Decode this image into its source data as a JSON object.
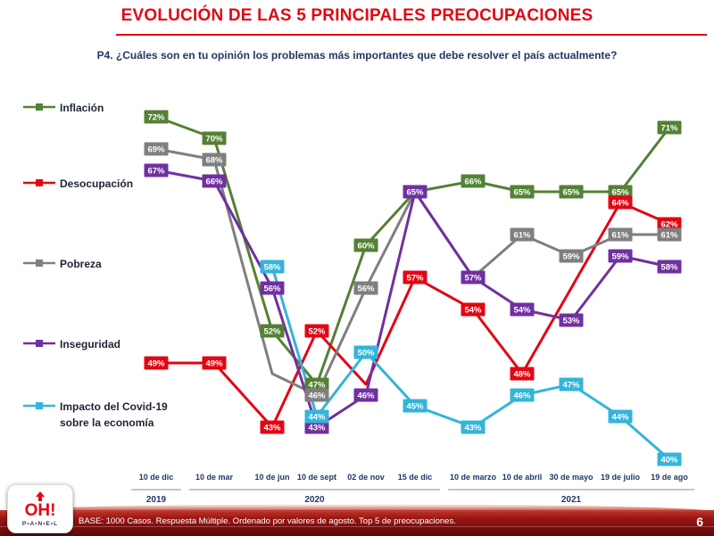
{
  "slide": {
    "title": "EVOLUCIÓN DE LAS 5 PRINCIPALES PREOCUPACIONES",
    "subtitle": "P4. ¿Cuáles son en tu opinión los problemas más importantes que debe resolver el país actualmente?",
    "footer_note": "BASE: 1000 Casos. Respuesta Múltiple. Ordenado por valores de agosto. Top 5 de preocupaciones.",
    "page_number": "6",
    "logo": {
      "brand": "OH!",
      "sub": "PANEL"
    },
    "colors": {
      "accent_red": "#e30613",
      "navy": "#1f3864"
    }
  },
  "chart_data": {
    "type": "line",
    "value_suffix": "%",
    "ylim": [
      35,
      78
    ],
    "grid": false,
    "legend_position": "left",
    "categories": [
      "10 de dic",
      "10 de mar",
      "10 de jun",
      "10 de sept",
      "02 de nov",
      "15 de dic",
      "10 de marzo",
      "10 de abril",
      "30 de mayo",
      "19 de julio",
      "19 de ago"
    ],
    "year_groups": [
      {
        "label": "2019",
        "start": 0,
        "end": 0
      },
      {
        "label": "2020",
        "start": 1,
        "end": 5
      },
      {
        "label": "2021",
        "start": 6,
        "end": 10
      }
    ],
    "series": [
      {
        "id": "inflacion",
        "name": "Inflación",
        "legend_label": "Inflación",
        "color": "#538135",
        "values": [
          72,
          70,
          52,
          47,
          60,
          65,
          66,
          65,
          65,
          65,
          71
        ],
        "hidden_labels": [
          5
        ]
      },
      {
        "id": "desocupacion",
        "name": "Desocupación",
        "legend_label": "Desocupación",
        "color": "#e30613",
        "values": [
          49,
          49,
          43,
          52,
          47,
          57,
          54,
          48,
          56,
          64,
          62
        ],
        "hidden_labels": [
          4,
          8
        ]
      },
      {
        "id": "pobreza",
        "name": "Pobreza",
        "legend_label": "Pobreza",
        "color": "#7f7f7f",
        "values": [
          69,
          68,
          48,
          46,
          56,
          65,
          57,
          61,
          59,
          61,
          61
        ],
        "hidden_labels": [
          2,
          5,
          6
        ]
      },
      {
        "id": "inseguridad",
        "name": "Inseguridad",
        "legend_label": "Inseguridad",
        "color": "#7030a0",
        "values": [
          67,
          66,
          56,
          43,
          46,
          65,
          57,
          54,
          53,
          59,
          58
        ],
        "hidden_labels": []
      },
      {
        "id": "covid",
        "name": "Impacto del Covid-19 sobre la economía",
        "legend_label": "Impacto del Covid-19\nsobre la economía",
        "color": "#35b4d9",
        "values": [
          null,
          null,
          58,
          44,
          50,
          45,
          43,
          46,
          47,
          44,
          40
        ],
        "hidden_labels": []
      }
    ]
  }
}
